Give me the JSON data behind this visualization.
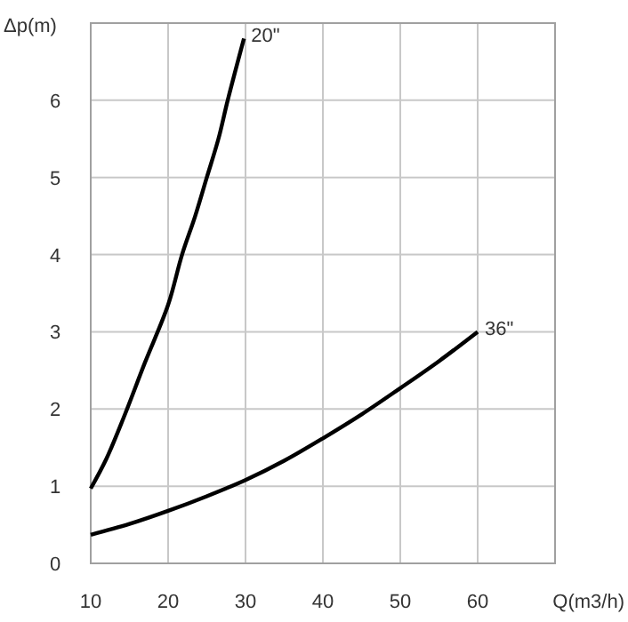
{
  "chart_data": {
    "type": "line",
    "xlabel": "Q(m3/h)",
    "ylabel": "Δp(m)",
    "xlim": [
      10,
      70
    ],
    "ylim": [
      0,
      7
    ],
    "xticks": [
      10,
      20,
      30,
      40,
      50,
      60
    ],
    "yticks": [
      0,
      1,
      2,
      3,
      4,
      5,
      6
    ],
    "grid": true,
    "marker": "none",
    "line_style": "solid",
    "series": [
      {
        "color": "#000000",
        "x": [
          10,
          12,
          14.3,
          17,
          20,
          21.8,
          23.5,
          25,
          26.5,
          27.7,
          29.8
        ],
        "values": [
          0.97,
          1.35,
          1.9,
          2.6,
          3.35,
          4.0,
          4.5,
          5.0,
          5.5,
          6.0,
          6.8
        ]
      },
      {
        "color": "#000000",
        "x": [
          10,
          15,
          20,
          25,
          30,
          35,
          40,
          45,
          50,
          55,
          60
        ],
        "values": [
          0.37,
          0.51,
          0.68,
          0.87,
          1.08,
          1.33,
          1.62,
          1.93,
          2.27,
          2.62,
          3.0
        ]
      }
    ],
    "annotations": [
      {
        "text": "20\"",
        "x": 29.8,
        "y": 6.8
      },
      {
        "text": "36\"",
        "x": 60,
        "y": 3.0
      }
    ]
  }
}
